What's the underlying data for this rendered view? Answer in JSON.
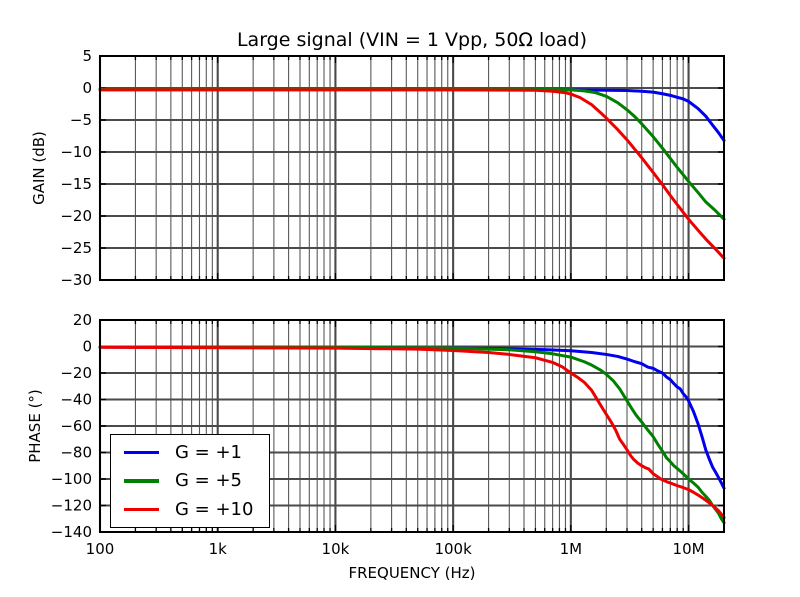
{
  "title": "Large signal (VIN = 1 Vpp, 50Ω load)",
  "xlabel": "FREQUENCY (Hz)",
  "colors": {
    "g1": "#0000ee",
    "g5": "#008000",
    "g10": "#ee0000",
    "grid_major": "#4a4a4a",
    "grid_minor": "#5a5a5a",
    "frame": "#000000",
    "background": "#ffffff"
  },
  "legend": {
    "items": [
      {
        "label": "G = +1",
        "color": "#0000ee"
      },
      {
        "label": "G = +5",
        "color": "#008000"
      },
      {
        "label": "G = +10",
        "color": "#ee0000"
      }
    ]
  },
  "x_ticks": [
    {
      "f": 100,
      "label": "100"
    },
    {
      "f": 1000,
      "label": "1k"
    },
    {
      "f": 10000,
      "label": "10k"
    },
    {
      "f": 100000,
      "label": "100k"
    },
    {
      "f": 1000000,
      "label": "1M"
    },
    {
      "f": 10000000,
      "label": "10M"
    }
  ],
  "chart_data": [
    {
      "type": "line",
      "title": "Large signal (VIN = 1 Vpp, 50Ω load)",
      "xlabel": "FREQUENCY (Hz)",
      "ylabel": "GAIN (dB)",
      "x_scale": "log",
      "xlim": [
        100,
        20000000
      ],
      "ylim": [
        -30,
        5
      ],
      "grid": "both",
      "y_ticks": [
        {
          "v": 5,
          "label": "5"
        },
        {
          "v": 0,
          "label": "0"
        },
        {
          "v": -5,
          "label": "−5"
        },
        {
          "v": -10,
          "label": "−10"
        },
        {
          "v": -15,
          "label": "−15"
        },
        {
          "v": -20,
          "label": "−20"
        },
        {
          "v": -25,
          "label": "−25"
        },
        {
          "v": -30,
          "label": "−30"
        }
      ],
      "series": [
        {
          "name": "G = +1",
          "color": "#0000ee",
          "points": [
            [
              100,
              -0.25
            ],
            [
              1000,
              -0.25
            ],
            [
              10000,
              -0.25
            ],
            [
              100000,
              -0.25
            ],
            [
              1000000,
              -0.3
            ],
            [
              2000000,
              -0.35
            ],
            [
              3000000,
              -0.4
            ],
            [
              4000000,
              -0.5
            ],
            [
              5000000,
              -0.65
            ],
            [
              6000000,
              -0.9
            ],
            [
              7000000,
              -1.15
            ],
            [
              8000000,
              -1.45
            ],
            [
              9000000,
              -1.7
            ],
            [
              10000000,
              -2.1
            ],
            [
              12000000,
              -3.2
            ],
            [
              14000000,
              -4.4
            ],
            [
              16000000,
              -5.8
            ],
            [
              18000000,
              -7.0
            ],
            [
              20000000,
              -8.2
            ]
          ]
        },
        {
          "name": "G = +5",
          "color": "#008000",
          "points": [
            [
              100,
              -0.2
            ],
            [
              1000,
              -0.2
            ],
            [
              10000,
              -0.2
            ],
            [
              100000,
              -0.2
            ],
            [
              800000,
              -0.25
            ],
            [
              1000000,
              -0.3
            ],
            [
              1300000,
              -0.45
            ],
            [
              1600000,
              -0.7
            ],
            [
              2000000,
              -1.3
            ],
            [
              2500000,
              -2.3
            ],
            [
              3000000,
              -3.4
            ],
            [
              3500000,
              -4.5
            ],
            [
              4000000,
              -5.6
            ],
            [
              5000000,
              -7.6
            ],
            [
              6000000,
              -9.4
            ],
            [
              7000000,
              -11.0
            ],
            [
              8000000,
              -12.4
            ],
            [
              10000000,
              -14.6
            ],
            [
              12000000,
              -16.3
            ],
            [
              14000000,
              -17.8
            ],
            [
              17000000,
              -19.2
            ],
            [
              20000000,
              -20.5
            ]
          ]
        },
        {
          "name": "G = +10",
          "color": "#ee0000",
          "points": [
            [
              100,
              -0.3
            ],
            [
              1000,
              -0.3
            ],
            [
              10000,
              -0.3
            ],
            [
              100000,
              -0.3
            ],
            [
              500000,
              -0.35
            ],
            [
              700000,
              -0.5
            ],
            [
              900000,
              -0.75
            ],
            [
              1000000,
              -0.95
            ],
            [
              1200000,
              -1.5
            ],
            [
              1500000,
              -2.6
            ],
            [
              1800000,
              -3.9
            ],
            [
              2000000,
              -4.7
            ],
            [
              2500000,
              -6.5
            ],
            [
              3000000,
              -8.1
            ],
            [
              3500000,
              -9.6
            ],
            [
              4000000,
              -10.9
            ],
            [
              5000000,
              -13.2
            ],
            [
              6000000,
              -15.1
            ],
            [
              7000000,
              -16.8
            ],
            [
              8000000,
              -18.2
            ],
            [
              10000000,
              -20.5
            ],
            [
              12000000,
              -22.2
            ],
            [
              14000000,
              -23.6
            ],
            [
              17000000,
              -25.2
            ],
            [
              20000000,
              -26.6
            ]
          ]
        }
      ]
    },
    {
      "type": "line",
      "title": "",
      "xlabel": "FREQUENCY (Hz)",
      "ylabel": "PHASE (°)",
      "x_scale": "log",
      "xlim": [
        100,
        20000000
      ],
      "ylim": [
        -140,
        20
      ],
      "grid": "both",
      "y_ticks": [
        {
          "v": 20,
          "label": "20"
        },
        {
          "v": 0,
          "label": "0"
        },
        {
          "v": -20,
          "label": "−20"
        },
        {
          "v": -40,
          "label": "−40"
        },
        {
          "v": -60,
          "label": "−60"
        },
        {
          "v": -80,
          "label": "−80"
        },
        {
          "v": -100,
          "label": "−100"
        },
        {
          "v": -120,
          "label": "−120"
        },
        {
          "v": -140,
          "label": "−140"
        }
      ],
      "series": [
        {
          "name": "G = +1",
          "color": "#0000ee",
          "points": [
            [
              100,
              -0.5
            ],
            [
              10000,
              -0.8
            ],
            [
              100000,
              -1.2
            ],
            [
              300000,
              -1.8
            ],
            [
              600000,
              -2.4
            ],
            [
              1000000,
              -3.2
            ],
            [
              1500000,
              -4.5
            ],
            [
              2000000,
              -6
            ],
            [
              2500000,
              -7.5
            ],
            [
              3000000,
              -9.5
            ],
            [
              3500000,
              -11.5
            ],
            [
              4000000,
              -13
            ],
            [
              4500000,
              -15.5
            ],
            [
              5000000,
              -16.5
            ],
            [
              5500000,
              -18.5
            ],
            [
              6000000,
              -20
            ],
            [
              6500000,
              -23
            ],
            [
              7000000,
              -25
            ],
            [
              7500000,
              -28
            ],
            [
              8000000,
              -30.5
            ],
            [
              8500000,
              -32
            ],
            [
              9000000,
              -35.5
            ],
            [
              9500000,
              -38
            ],
            [
              10000000,
              -41
            ],
            [
              11000000,
              -49
            ],
            [
              12000000,
              -58
            ],
            [
              13000000,
              -68
            ],
            [
              14000000,
              -78
            ],
            [
              15000000,
              -85
            ],
            [
              16000000,
              -91
            ],
            [
              17000000,
              -95
            ],
            [
              18000000,
              -99
            ],
            [
              19000000,
              -103
            ],
            [
              20000000,
              -107
            ]
          ]
        },
        {
          "name": "G = +5",
          "color": "#008000",
          "points": [
            [
              100,
              -0.4
            ],
            [
              10000,
              -0.6
            ],
            [
              100000,
              -1.2
            ],
            [
              300000,
              -2.5
            ],
            [
              500000,
              -4
            ],
            [
              700000,
              -5.5
            ],
            [
              1000000,
              -8
            ],
            [
              1300000,
              -11.5
            ],
            [
              1500000,
              -14
            ],
            [
              1800000,
              -18
            ],
            [
              2000000,
              -21
            ],
            [
              2300000,
              -26
            ],
            [
              2600000,
              -32
            ],
            [
              3000000,
              -41
            ],
            [
              3300000,
              -47
            ],
            [
              3600000,
              -52
            ],
            [
              4000000,
              -57
            ],
            [
              4500000,
              -63
            ],
            [
              5000000,
              -68
            ],
            [
              5500000,
              -74
            ],
            [
              6000000,
              -79
            ],
            [
              6500000,
              -84
            ],
            [
              7000000,
              -87
            ],
            [
              7500000,
              -90
            ],
            [
              8000000,
              -92
            ],
            [
              9000000,
              -96
            ],
            [
              10000000,
              -100
            ],
            [
              11000000,
              -103
            ],
            [
              12000000,
              -106
            ],
            [
              13000000,
              -110
            ],
            [
              14000000,
              -113
            ],
            [
              15000000,
              -116
            ],
            [
              16000000,
              -120
            ],
            [
              17000000,
              -123
            ],
            [
              18000000,
              -126
            ],
            [
              19000000,
              -130
            ],
            [
              20000000,
              -133
            ]
          ]
        },
        {
          "name": "G = +10",
          "color": "#ee0000",
          "points": [
            [
              100,
              -0.6
            ],
            [
              10000,
              -1.2
            ],
            [
              50000,
              -2
            ],
            [
              100000,
              -3
            ],
            [
              200000,
              -4.5
            ],
            [
              300000,
              -6
            ],
            [
              500000,
              -8.5
            ],
            [
              700000,
              -12
            ],
            [
              850000,
              -15.5
            ],
            [
              1000000,
              -20
            ],
            [
              1150000,
              -23.5
            ],
            [
              1300000,
              -27
            ],
            [
              1500000,
              -33
            ],
            [
              1700000,
              -41
            ],
            [
              1900000,
              -48
            ],
            [
              2200000,
              -57
            ],
            [
              2400000,
              -63
            ],
            [
              2600000,
              -70
            ],
            [
              2800000,
              -74
            ],
            [
              3000000,
              -78
            ],
            [
              3200000,
              -82
            ],
            [
              3400000,
              -85
            ],
            [
              3700000,
              -88
            ],
            [
              4000000,
              -90
            ],
            [
              4300000,
              -91.5
            ],
            [
              4600000,
              -92.5
            ],
            [
              5000000,
              -96
            ],
            [
              5400000,
              -98
            ],
            [
              5800000,
              -100
            ],
            [
              6500000,
              -102
            ],
            [
              7000000,
              -103
            ],
            [
              8000000,
              -105
            ],
            [
              9000000,
              -106.5
            ],
            [
              10000000,
              -108
            ],
            [
              11000000,
              -110
            ],
            [
              12000000,
              -112
            ],
            [
              13500000,
              -115
            ],
            [
              15000000,
              -118
            ],
            [
              16500000,
              -121
            ],
            [
              18000000,
              -124
            ],
            [
              20000000,
              -129
            ]
          ]
        }
      ]
    }
  ]
}
